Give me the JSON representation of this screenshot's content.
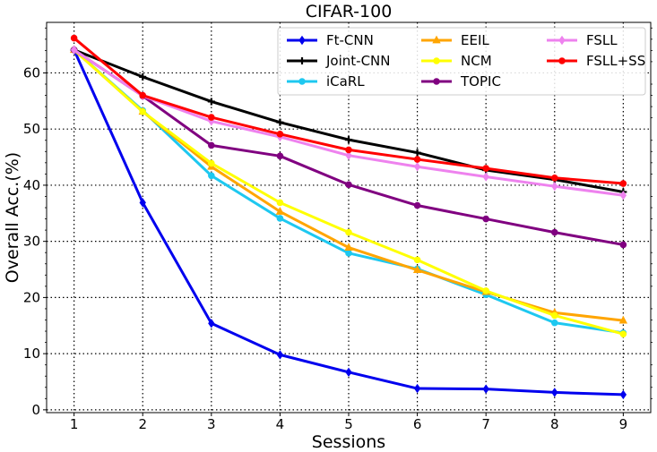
{
  "chart_data": {
    "type": "line",
    "title": "CIFAR-100",
    "xlabel": "Sessions",
    "ylabel": "Overall Acc.(%)",
    "x": [
      1,
      2,
      3,
      4,
      5,
      6,
      7,
      8,
      9
    ],
    "xlim": [
      0.6,
      9.4
    ],
    "ylim": [
      -0.5,
      69
    ],
    "xticks": [
      1,
      2,
      3,
      4,
      5,
      6,
      7,
      8,
      9
    ],
    "yticks": [
      0,
      10,
      20,
      30,
      40,
      50,
      60
    ],
    "grid": true,
    "legend_position": "top-right",
    "series": [
      {
        "name": "Ft-CNN",
        "color": "#0000ee",
        "marker": "diamond",
        "values": [
          64.1,
          36.9,
          15.4,
          9.8,
          6.7,
          3.8,
          3.7,
          3.1,
          2.7
        ]
      },
      {
        "name": "Joint-CNN",
        "color": "#000000",
        "marker": "plus",
        "values": [
          64.1,
          59.3,
          54.9,
          51.2,
          48.1,
          45.8,
          42.7,
          41.0,
          38.8
        ]
      },
      {
        "name": "iCaRL",
        "color": "#1ec8f0",
        "marker": "circle",
        "values": [
          64.1,
          53.3,
          41.7,
          34.1,
          27.9,
          25.1,
          20.5,
          15.5,
          13.7
        ]
      },
      {
        "name": "EEIL",
        "color": "#ffa500",
        "marker": "triangle",
        "values": [
          64.1,
          53.1,
          43.3,
          35.3,
          28.9,
          24.9,
          21.0,
          17.3,
          15.9
        ]
      },
      {
        "name": "NCM",
        "color": "#ffff00",
        "marker": "circle",
        "values": [
          64.1,
          53.1,
          43.9,
          36.9,
          31.6,
          26.7,
          21.2,
          16.8,
          13.5
        ]
      },
      {
        "name": "TOPIC",
        "color": "#800080",
        "marker": "circle",
        "values": [
          64.1,
          55.9,
          47.1,
          45.2,
          40.1,
          36.4,
          34.0,
          31.6,
          29.4
        ]
      },
      {
        "name": "FSLL",
        "color": "#ee82ee",
        "marker": "diamond",
        "values": [
          64.1,
          55.9,
          51.4,
          48.6,
          45.3,
          43.3,
          41.5,
          39.8,
          38.2
        ]
      },
      {
        "name": "FSLL+SS",
        "color": "#ff0000",
        "marker": "circle",
        "values": [
          66.2,
          56.0,
          52.1,
          49.1,
          46.3,
          44.6,
          43.0,
          41.3,
          40.3
        ]
      }
    ]
  }
}
